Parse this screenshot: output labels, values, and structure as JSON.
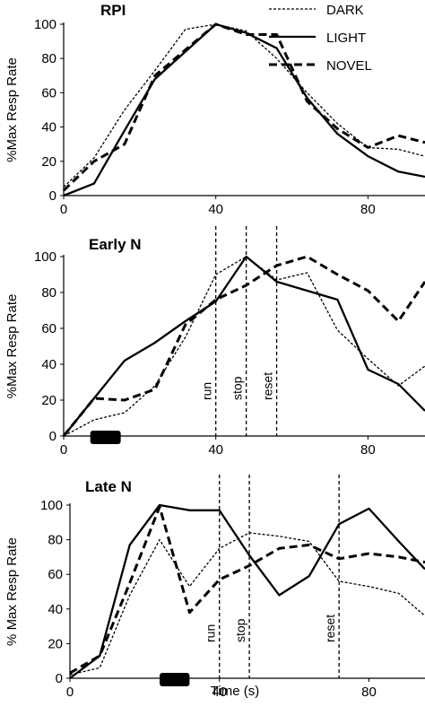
{
  "legend": [
    {
      "name": "DARK",
      "style": "dotted"
    },
    {
      "name": "LIGHT",
      "style": "solid"
    },
    {
      "name": "NOVEL",
      "style": "dashed"
    }
  ],
  "chart_data": [
    {
      "type": "line",
      "title": "RPI",
      "ylabel": "%Max Resp Rate",
      "xlabel": "",
      "xlim": [
        0,
        95
      ],
      "ylim": [
        0,
        100
      ],
      "xticks": [
        0,
        40,
        80
      ],
      "yticks": [
        0,
        20,
        40,
        60,
        80,
        100
      ],
      "series": [
        {
          "name": "DARK",
          "style": "dotted",
          "x": [
            0,
            8,
            16,
            24,
            32,
            40,
            48,
            56,
            64,
            72,
            80,
            88,
            95
          ],
          "y": [
            5,
            22,
            50,
            73,
            97,
            100,
            96,
            80,
            60,
            42,
            28,
            27,
            23
          ]
        },
        {
          "name": "LIGHT",
          "style": "solid",
          "x": [
            0,
            8,
            16,
            24,
            32,
            40,
            48,
            56,
            64,
            72,
            80,
            88,
            95
          ],
          "y": [
            0,
            7,
            38,
            68,
            84,
            100,
            95,
            86,
            57,
            36,
            23,
            14,
            11
          ]
        },
        {
          "name": "NOVEL",
          "style": "dashed",
          "x": [
            0,
            8,
            16,
            24,
            32,
            40,
            48,
            56,
            64,
            72,
            80,
            88,
            95
          ],
          "y": [
            3,
            20,
            30,
            70,
            85,
            100,
            94,
            94,
            55,
            39,
            28,
            35,
            31
          ]
        }
      ],
      "vlines": []
    },
    {
      "type": "line",
      "title": "Early N",
      "ylabel": "%Max Resp Rate",
      "xlabel": "",
      "xlim": [
        0,
        95
      ],
      "ylim": [
        0,
        100
      ],
      "xticks": [
        0,
        40,
        80
      ],
      "yticks": [
        0,
        20,
        40,
        60,
        80,
        100
      ],
      "series": [
        {
          "name": "DARK",
          "style": "dotted",
          "x": [
            0,
            8,
            16,
            24,
            32,
            40,
            48,
            56,
            64,
            72,
            80,
            88,
            95
          ],
          "y": [
            0,
            9,
            13,
            28,
            55,
            90,
            100,
            87,
            91,
            59,
            43,
            28,
            39
          ]
        },
        {
          "name": "LIGHT",
          "style": "solid",
          "x": [
            0,
            8,
            16,
            24,
            32,
            40,
            48,
            56,
            64,
            72,
            80,
            88,
            95
          ],
          "y": [
            0,
            21,
            42,
            52,
            64,
            75,
            100,
            86,
            81,
            76,
            37,
            29,
            14
          ]
        },
        {
          "name": "NOVEL",
          "style": "dashed",
          "x": [
            0,
            8,
            16,
            24,
            32,
            40,
            48,
            56,
            64,
            72,
            80,
            88,
            95
          ],
          "y": [
            0,
            21,
            20,
            26,
            62,
            76,
            84,
            95,
            100,
            90,
            81,
            64,
            86
          ]
        }
      ],
      "vlines": [
        {
          "x": 40,
          "label": "run"
        },
        {
          "x": 48,
          "label": "stop"
        },
        {
          "x": 56,
          "label": "reset"
        }
      ],
      "stimulus_bar": {
        "x_start": 7,
        "x_end": 15
      }
    },
    {
      "type": "line",
      "title": "Late N",
      "ylabel": "% Max Resp Rate",
      "xlabel": "Time (s)",
      "xlim": [
        0,
        95
      ],
      "ylim": [
        0,
        100
      ],
      "xticks": [
        0,
        40,
        80
      ],
      "yticks": [
        0,
        20,
        40,
        60,
        80,
        100
      ],
      "series": [
        {
          "name": "DARK",
          "style": "dotted",
          "x": [
            0,
            8,
            16,
            24,
            32,
            40,
            48,
            56,
            64,
            72,
            80,
            88,
            95
          ],
          "y": [
            2,
            6,
            48,
            80,
            53,
            75,
            84,
            82,
            79,
            56,
            53,
            49,
            36
          ]
        },
        {
          "name": "LIGHT",
          "style": "solid",
          "x": [
            0,
            8,
            16,
            24,
            32,
            40,
            48,
            56,
            64,
            72,
            80,
            88,
            95
          ],
          "y": [
            0,
            13,
            77,
            100,
            97,
            97,
            71,
            48,
            59,
            89,
            98,
            79,
            63
          ]
        },
        {
          "name": "NOVEL",
          "style": "dashed",
          "x": [
            0,
            8,
            16,
            24,
            32,
            40,
            48,
            56,
            64,
            72,
            80,
            88,
            95
          ],
          "y": [
            3,
            13,
            55,
            99,
            38,
            57,
            65,
            75,
            77,
            69,
            72,
            70,
            67
          ]
        }
      ],
      "vlines": [
        {
          "x": 40,
          "label": "run"
        },
        {
          "x": 48,
          "label": "stop"
        },
        {
          "x": 72,
          "label": "reset"
        }
      ],
      "stimulus_bar": {
        "x_start": 24,
        "x_end": 32
      }
    }
  ]
}
